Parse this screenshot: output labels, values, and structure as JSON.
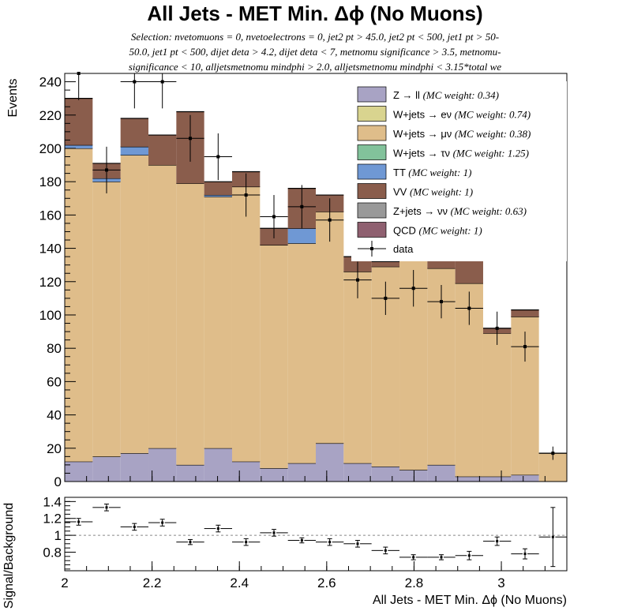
{
  "title": "All Jets - MET Min. Δϕ (No Muons)",
  "selection_lines": [
    "Selection: nvetomuons = 0, nvetoelectrons = 0, jet2 pt > 45.0, jet2 pt < 500, jet1 pt > 50-",
    "50.0, jet1 pt < 500, dijet deta > 4.2, dijet deta < 7, metnomu significance > 3.5, metnomu-",
    "significance < 10, alljetsmetnomu mindphi > 2.0, alljetsmetnomu mindphi < 3.15*total we"
  ],
  "colors": {
    "Z→ll": "#a8a3c4",
    "W→eν": "#d9d48f",
    "W→μν": "#dfbd8a",
    "W→τν": "#82c29b",
    "TT": "#6f98d4",
    "VV": "#8a5d4c",
    "Z→νν": "#999999",
    "QCD": "#8f6070"
  },
  "chart_data": [
    {
      "type": "bar",
      "stacked": true,
      "panel": "main",
      "ylabel": "Events",
      "ylim": [
        0,
        245
      ],
      "yticks": [
        "0",
        "20",
        "40",
        "60",
        "80",
        "100",
        "120",
        "140",
        "160",
        "180",
        "200",
        "220",
        "240"
      ],
      "xlim": [
        2.0,
        3.15
      ],
      "bin_edges": [
        2.0,
        2.0639,
        2.1278,
        2.1917,
        2.2556,
        2.3194,
        2.3833,
        2.4472,
        2.5111,
        2.575,
        2.6389,
        2.7028,
        2.7667,
        2.8306,
        2.8944,
        2.9583,
        3.0222,
        3.0861,
        3.15
      ],
      "legend_position": "top-right",
      "series": [
        {
          "label": "Z → ll",
          "weight": "(MC weight: 0.34)",
          "color_key": "Z→ll",
          "values": [
            12,
            15,
            17,
            20,
            10,
            20,
            12,
            8,
            11,
            23,
            11,
            9,
            7,
            10,
            3,
            3,
            4,
            0
          ]
        },
        {
          "label": "W+jets → eν",
          "weight": "(MC weight: 0.74)",
          "color_key": "W→eν",
          "values": [
            0,
            0,
            0,
            0,
            0,
            0,
            0,
            0,
            0,
            0,
            0,
            0,
            0,
            0,
            0,
            0,
            0,
            0
          ]
        },
        {
          "label": "W+jets → μν",
          "weight": "(MC weight: 0.38)",
          "color_key": "W→μν",
          "values": [
            188,
            165,
            179,
            170,
            169,
            151,
            165,
            134,
            132,
            139,
            115,
            120,
            142,
            118,
            116,
            86,
            95,
            17
          ]
        },
        {
          "label": "W+jets → τν",
          "weight": "(MC weight: 1.25)",
          "color_key": "W→τν",
          "values": [
            0,
            0,
            0,
            0,
            0,
            0,
            0,
            0,
            0,
            0,
            0,
            0,
            0,
            0,
            0,
            0,
            0,
            0
          ]
        },
        {
          "label": "TT",
          "weight": "(MC weight: 1)",
          "color_key": "TT",
          "values": [
            2,
            2,
            5,
            0,
            0,
            1,
            0,
            0,
            9,
            0,
            0,
            0,
            0,
            0,
            0,
            0,
            0,
            0
          ]
        },
        {
          "label": "VV",
          "weight": "(MC weight: 1)",
          "color_key": "VV",
          "values": [
            28,
            9,
            17,
            18,
            43,
            8,
            9,
            10,
            24,
            10,
            9,
            3,
            6,
            20,
            16,
            3,
            4,
            0
          ]
        },
        {
          "label": "Z+jets → νν",
          "weight": "(MC weight: 0.63)",
          "color_key": "Z→νν",
          "values": [
            0,
            0,
            0,
            0,
            0,
            0,
            0,
            0,
            0,
            0,
            0,
            0,
            0,
            0,
            0,
            0,
            0,
            0
          ]
        },
        {
          "label": "QCD",
          "weight": "(MC weight: 1)",
          "color_key": "QCD",
          "values": [
            0,
            0,
            0,
            0,
            0,
            0,
            0,
            0,
            0,
            0,
            0,
            0,
            0,
            0,
            0,
            0,
            0,
            0
          ]
        }
      ],
      "data": {
        "label": "data",
        "values": [
          245,
          187,
          240,
          240,
          206,
          195,
          172,
          159,
          165,
          157,
          121,
          110,
          116,
          108,
          104,
          92,
          81,
          17
        ],
        "errors": [
          16,
          14,
          16,
          16,
          14,
          14,
          13,
          13,
          13,
          13,
          11,
          10,
          11,
          10,
          10,
          10,
          9,
          4
        ]
      }
    },
    {
      "type": "scatter",
      "panel": "ratio",
      "ylabel": "Signal/Background",
      "xlabel": "All Jets - MET Min. Δϕ (No Muons)",
      "ylim": [
        0.58,
        1.45
      ],
      "yticks": [
        "0.8",
        "1",
        "1.2",
        "1.4"
      ],
      "xlim": [
        2.0,
        3.15
      ],
      "xticks": [
        "2",
        "2.2",
        "2.4",
        "2.6",
        "2.8",
        "3"
      ],
      "reference_line": 1.0,
      "x": [
        2.0319,
        2.0958,
        2.1597,
        2.2236,
        2.2875,
        2.3514,
        2.4153,
        2.4792,
        2.5431,
        2.6069,
        2.6708,
        2.7347,
        2.7986,
        2.8625,
        2.9264,
        2.9903,
        3.0542,
        3.1181
      ],
      "y": [
        1.16,
        1.33,
        1.1,
        1.15,
        0.92,
        1.08,
        0.92,
        1.03,
        0.94,
        0.92,
        0.9,
        0.82,
        0.74,
        0.74,
        0.76,
        0.93,
        0.78,
        0.98
      ],
      "errors": [
        0.04,
        0.04,
        0.04,
        0.04,
        0.03,
        0.04,
        0.04,
        0.04,
        0.03,
        0.04,
        0.04,
        0.04,
        0.03,
        0.03,
        0.05,
        0.05,
        0.06,
        0.35
      ]
    }
  ]
}
